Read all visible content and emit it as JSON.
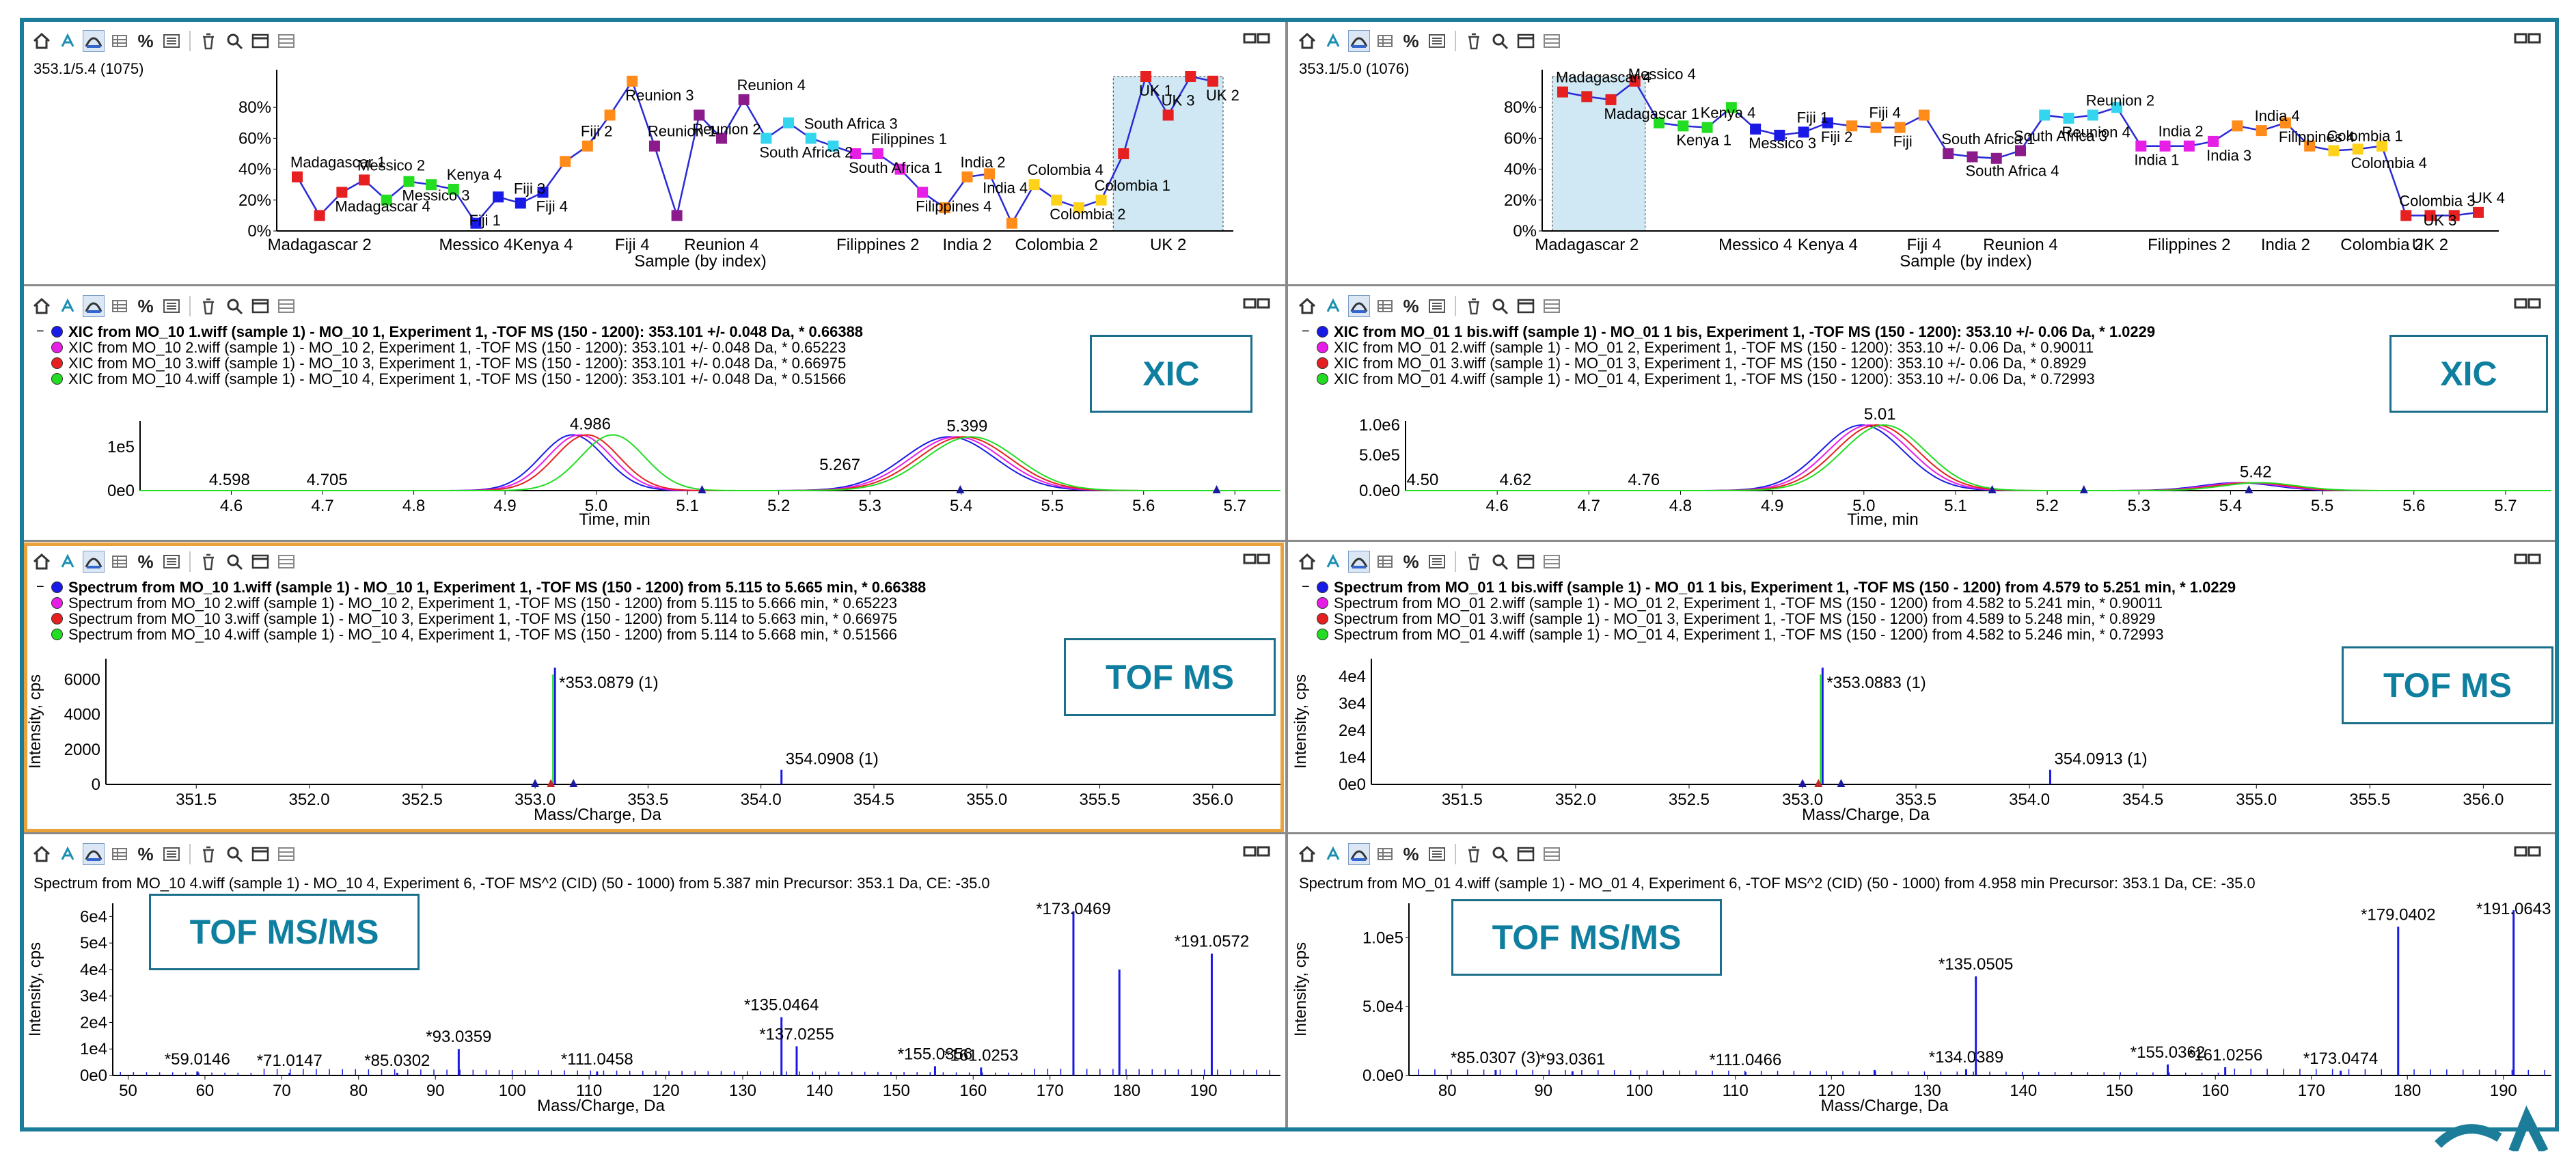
{
  "colors": {
    "frame": "#1b7d9a",
    "accent": "#0f7fa0",
    "selected": "#e9a23b",
    "blue": "#1a1ae6",
    "magenta": "#e61ee6",
    "red": "#e62020",
    "green": "#22dd22",
    "line": "#2a2ad6"
  },
  "toolbar_icons": [
    "home-icon",
    "zoom-tool-icon",
    "peak-icon",
    "table-icon",
    "percent-icon",
    "list-icon",
    "delete-icon",
    "search-icon",
    "window-icon",
    "window-alt-icon"
  ],
  "percent_label": "%",
  "panels": {
    "trend_left": {
      "header": "353.1/5.4 (1075)",
      "chart_data": {
        "type": "line",
        "xlabel": "Sample (by index)",
        "yticks": [
          "0%",
          "20%",
          "40%",
          "60%",
          "80%"
        ],
        "ylim": [
          0,
          100
        ],
        "xticks": [
          "Madagascar 2",
          "Messico 4",
          "Kenya 4",
          "Fiji 4",
          "Reunion 4",
          "Filippines 2",
          "India 2",
          "Colombia 2",
          "UK 2"
        ],
        "values": [
          35,
          10,
          25,
          33,
          20,
          32,
          30,
          27,
          5,
          22,
          18,
          25,
          45,
          55,
          75,
          97,
          55,
          10,
          75,
          60,
          85,
          60,
          70,
          60,
          55,
          50,
          50,
          40,
          25,
          15,
          35,
          37,
          5,
          30,
          20,
          15,
          20,
          50,
          100,
          75,
          100,
          97
        ],
        "colors": [
          "#e62020",
          "#e62020",
          "#e62020",
          "#e62020",
          "#22dd22",
          "#22dd22",
          "#22dd22",
          "#22dd22",
          "#1a1ae6",
          "#1a1ae6",
          "#1a1ae6",
          "#1a1ae6",
          "#ff8c1a",
          "#ff8c1a",
          "#ff8c1a",
          "#ff8c1a",
          "#8b1a8b",
          "#8b1a8b",
          "#8b1a8b",
          "#8b1a8b",
          "#8b1a8b",
          "#33d6ee",
          "#33d6ee",
          "#33d6ee",
          "#33d6ee",
          "#e61ee6",
          "#e61ee6",
          "#e61ee6",
          "#e61ee6",
          "#ff8c1a",
          "#ff8c1a",
          "#ff8c1a",
          "#ff8c1a",
          "#ffd21a",
          "#ffd21a",
          "#ffd21a",
          "#ffd21a",
          "#e62020",
          "#e62020",
          "#e62020",
          "#e62020",
          "#e62020"
        ],
        "annotations": [
          "Madagascar 1",
          "Madagascar 4",
          "Messico 2",
          "Messico 3",
          "Kenya 4",
          "Fiji 1",
          "Fiji 3",
          "Fiji 4",
          "Fiji 2",
          "Reunion 3",
          "Reunion 1",
          "Reunion 2",
          "Reunion 4",
          "South Africa 2",
          "South Africa 3",
          "South Africa 1",
          "Filippines 1",
          "Filippines 4",
          "India 2",
          "India 4",
          "Colombia 4",
          "Colombia 2",
          "Colombia 1",
          "UK 1",
          "UK 3",
          "UK 2"
        ],
        "highlight": "UK 2"
      }
    },
    "trend_right": {
      "header": "353.1/5.0 (1076)",
      "chart_data": {
        "type": "line",
        "xlabel": "Sample (by index)",
        "yticks": [
          "0%",
          "20%",
          "40%",
          "60%",
          "80%"
        ],
        "ylim": [
          0,
          100
        ],
        "xticks": [
          "Madagascar 2",
          "Messico 4",
          "Kenya 4",
          "Fiji 4",
          "Reunion 4",
          "Filippines 2",
          "India 2",
          "Colombia 2",
          "UK 2"
        ],
        "values": [
          90,
          87,
          85,
          97,
          70,
          68,
          67,
          80,
          66,
          62,
          64,
          70,
          68,
          67,
          67,
          75,
          50,
          48,
          47,
          52,
          75,
          73,
          75,
          80,
          55,
          55,
          55,
          58,
          68,
          65,
          70,
          55,
          52,
          53,
          55,
          10,
          10,
          10,
          12
        ],
        "colors": [
          "#e62020",
          "#e62020",
          "#e62020",
          "#e62020",
          "#22dd22",
          "#22dd22",
          "#22dd22",
          "#22dd22",
          "#1a1ae6",
          "#1a1ae6",
          "#1a1ae6",
          "#1a1ae6",
          "#ff8c1a",
          "#ff8c1a",
          "#ff8c1a",
          "#ff8c1a",
          "#8b1a8b",
          "#8b1a8b",
          "#8b1a8b",
          "#8b1a8b",
          "#33d6ee",
          "#33d6ee",
          "#33d6ee",
          "#33d6ee",
          "#e61ee6",
          "#e61ee6",
          "#e61ee6",
          "#e61ee6",
          "#ff8c1a",
          "#ff8c1a",
          "#ff8c1a",
          "#ff8c1a",
          "#ffd21a",
          "#ffd21a",
          "#ffd21a",
          "#e62020",
          "#e62020",
          "#e62020",
          "#e62020"
        ],
        "annotations": [
          "Madagascar 4",
          "Madagascar 1",
          "Messico 4",
          "Kenya 1",
          "Kenya 4",
          "Messico 3",
          "Fiji 1",
          "Fiji 2",
          "Fiji 4",
          "Fiji",
          "South Africa 1",
          "South Africa 4",
          "South Africa 3",
          "Reunion 4",
          "Reunion 2",
          "India 1",
          "India 2",
          "India 3",
          "India 4",
          "Filippines 4",
          "Colombia 1",
          "Colombia 4",
          "Colombia 3",
          "UK 3",
          "UK 4"
        ],
        "highlight": "Madagascar 2"
      }
    },
    "xic_left": {
      "tag": "XIC",
      "legend": [
        "XIC from MO_10 1.wiff (sample 1) - MO_10 1, Experiment 1, -TOF MS (150 - 1200): 353.101 +/- 0.048 Da,  * 0.66388",
        "XIC from MO_10 2.wiff (sample 1) - MO_10 2, Experiment 1, -TOF MS (150 - 1200): 353.101 +/- 0.048 Da,  * 0.65223",
        "XIC from MO_10 3.wiff (sample 1) - MO_10 3, Experiment 1, -TOF MS (150 - 1200): 353.101 +/- 0.048 Da,  * 0.66975",
        "XIC from MO_10 4.wiff (sample 1) - MO_10 4, Experiment 1, -TOF MS (150 - 1200): 353.101 +/- 0.048 Da,  * 0.51566"
      ],
      "chart_data": {
        "type": "line",
        "xlabel": "Time, min",
        "xlim": [
          4.5,
          5.75
        ],
        "xticks": [
          "4.6",
          "4.7",
          "4.8",
          "4.9",
          "5.0",
          "5.1",
          "5.2",
          "5.3",
          "5.4",
          "5.5",
          "5.6",
          "5.7"
        ],
        "yticks": [
          "0e0",
          "1e5"
        ],
        "peaks": [
          {
            "rt": 4.986,
            "label": "4.986"
          },
          {
            "rt": 5.399,
            "label": "5.399"
          }
        ],
        "labels": [
          "4.598",
          "4.705",
          "5.267"
        ]
      }
    },
    "xic_right": {
      "tag": "XIC",
      "legend": [
        "XIC from MO_01 1 bis.wiff (sample 1) - MO_01 1 bis, Experiment 1, -TOF MS (150 - 1200): 353.10 +/- 0.06 Da,  * 1.0229",
        "XIC from MO_01 2.wiff (sample 1) - MO_01 2, Experiment 1, -TOF MS (150 - 1200): 353.10 +/- 0.06 Da,  * 0.90011",
        "XIC from MO_01 3.wiff (sample 1) - MO_01 3, Experiment 1, -TOF MS (150 - 1200): 353.10 +/- 0.06 Da,  * 0.8929",
        "XIC from MO_01 4.wiff (sample 1) - MO_01 4, Experiment 1, -TOF MS (150 - 1200): 353.10 +/- 0.06 Da,  * 0.72993"
      ],
      "chart_data": {
        "type": "line",
        "xlabel": "Time, min",
        "xlim": [
          4.5,
          5.75
        ],
        "xticks": [
          "4.6",
          "4.7",
          "4.8",
          "4.9",
          "5.0",
          "5.1",
          "5.2",
          "5.3",
          "5.4",
          "5.5",
          "5.6",
          "5.7"
        ],
        "yticks": [
          "0.0e0",
          "5.0e5",
          "1.0e6"
        ],
        "peaks": [
          {
            "rt": 5.01,
            "label": "5.01"
          },
          {
            "rt": 5.42,
            "label": "5.42"
          }
        ],
        "labels": [
          "4.50",
          "4.62",
          "4.76"
        ]
      }
    },
    "tof_left": {
      "tag": "TOF MS",
      "legend": [
        "Spectrum from MO_10 1.wiff (sample 1) - MO_10 1, Experiment 1, -TOF MS (150 - 1200) from 5.115 to 5.665 min,  * 0.66388",
        "Spectrum from MO_10 2.wiff (sample 1) - MO_10 2, Experiment 1, -TOF MS (150 - 1200) from 5.115 to 5.666 min,  * 0.65223",
        "Spectrum from MO_10 3.wiff (sample 1) - MO_10 3, Experiment 1, -TOF MS (150 - 1200) from 5.114 to 5.663 min,  * 0.66975",
        "Spectrum from MO_10 4.wiff (sample 1) - MO_10 4, Experiment 1, -TOF MS (150 - 1200) from 5.114 to 5.668 min,  * 0.51566"
      ],
      "chart_data": {
        "type": "bar",
        "xlabel": "Mass/Charge, Da",
        "ylabel": "Intensity, cps",
        "xticks": [
          "351.5",
          "352.0",
          "352.5",
          "353.0",
          "353.5",
          "354.0",
          "354.5",
          "355.0",
          "355.5",
          "356.0"
        ],
        "yticks": [
          "0",
          "2000",
          "4000",
          "6000"
        ],
        "peaks": [
          {
            "mz": 353.0879,
            "label": "*353.0879 (1)"
          },
          {
            "mz": 354.0908,
            "label": "354.0908 (1)"
          }
        ]
      }
    },
    "tof_right": {
      "tag": "TOF MS",
      "legend": [
        "Spectrum from MO_01 1 bis.wiff (sample 1) - MO_01 1 bis, Experiment 1, -TOF MS (150 - 1200) from 4.579 to 5.251 min,  * 1.0229",
        "Spectrum from MO_01 2.wiff (sample 1) - MO_01 2, Experiment 1, -TOF MS (150 - 1200) from 4.582 to 5.241 min,  * 0.90011",
        "Spectrum from MO_01 3.wiff (sample 1) - MO_01 3, Experiment 1, -TOF MS (150 - 1200) from 4.589 to 5.248 min,  * 0.8929",
        "Spectrum from MO_01 4.wiff (sample 1) - MO_01 4, Experiment 1, -TOF MS (150 - 1200) from 4.582 to 5.246 min,  * 0.72993"
      ],
      "chart_data": {
        "type": "bar",
        "xlabel": "Mass/Charge, Da",
        "ylabel": "Intensity, cps",
        "xticks": [
          "351.5",
          "352.0",
          "352.5",
          "353.0",
          "353.5",
          "354.0",
          "354.5",
          "355.0",
          "355.5",
          "356.0"
        ],
        "yticks": [
          "0e0",
          "1e4",
          "2e4",
          "3e4",
          "4e4"
        ],
        "peaks": [
          {
            "mz": 353.0883,
            "label": "*353.0883 (1)"
          },
          {
            "mz": 354.0913,
            "label": "354.0913 (1)"
          }
        ]
      }
    },
    "msms_left": {
      "tag": "TOF MS/MS",
      "header": "Spectrum from MO_10 4.wiff (sample 1) - MO_10 4, Experiment 6, -TOF MS^2 (CID) (50 - 1000) from 5.387 min Precursor: 353.1 Da, CE: -35.0",
      "chart_data": {
        "type": "bar",
        "xlabel": "Mass/Charge, Da",
        "ylabel": "Intensity, cps",
        "xticks": [
          "50",
          "60",
          "70",
          "80",
          "90",
          "100",
          "110",
          "120",
          "130",
          "140",
          "150",
          "160",
          "170",
          "180",
          "190"
        ],
        "yticks": [
          "0e0",
          "1e4",
          "2e4",
          "3e4",
          "4e4",
          "5e4",
          "6e4"
        ],
        "xlim": [
          48,
          200
        ],
        "ylim": [
          0,
          65000
        ],
        "peaks": [
          {
            "mz": 59.0146,
            "i": 1500,
            "label": "*59.0146"
          },
          {
            "mz": 71.0147,
            "i": 1000,
            "label": "*71.0147"
          },
          {
            "mz": 85.0302,
            "i": 1000,
            "label": "*85.0302"
          },
          {
            "mz": 93.0359,
            "i": 10000,
            "label": "*93.0359"
          },
          {
            "mz": 111.0458,
            "i": 1500,
            "label": "*111.0458"
          },
          {
            "mz": 135.0464,
            "i": 22000,
            "label": "*135.0464"
          },
          {
            "mz": 137.0255,
            "i": 11000,
            "label": "*137.0255"
          },
          {
            "mz": 155.0356,
            "i": 3500,
            "label": "*155.0356"
          },
          {
            "mz": 161.0253,
            "i": 3000,
            "label": "*161.0253"
          },
          {
            "mz": 173.0469,
            "i": 62000,
            "label": "*173.0469"
          },
          {
            "mz": 179.03,
            "i": 40000,
            "label": ""
          },
          {
            "mz": 191.0572,
            "i": 46000,
            "label": "*191.0572"
          }
        ]
      }
    },
    "msms_right": {
      "tag": "TOF MS/MS",
      "header": "Spectrum from MO_01 4.wiff (sample 1) - MO_01 4, Experiment 6, -TOF MS^2 (CID) (50 - 1000) from 4.958 min Precursor: 353.1 Da, CE: -35.0",
      "chart_data": {
        "type": "bar",
        "xlabel": "Mass/Charge, Da",
        "ylabel": "Intensity, cps",
        "xticks": [
          "80",
          "90",
          "100",
          "110",
          "120",
          "130",
          "140",
          "150",
          "160",
          "170",
          "180",
          "190"
        ],
        "yticks": [
          "0.0e0",
          "5.0e4",
          "1.0e5"
        ],
        "xlim": [
          76,
          195
        ],
        "ylim": [
          0,
          125000
        ],
        "peaks": [
          {
            "mz": 85.0307,
            "i": 4000,
            "label": "*85.0307 (3)"
          },
          {
            "mz": 93.0361,
            "i": 3000,
            "label": "*93.0361"
          },
          {
            "mz": 111.0466,
            "i": 2500,
            "label": "*111.0466"
          },
          {
            "mz": 124.5,
            "i": 4000,
            "label": ""
          },
          {
            "mz": 134.0389,
            "i": 4500,
            "label": "*134.0389"
          },
          {
            "mz": 135.0505,
            "i": 72000,
            "label": "*135.0505"
          },
          {
            "mz": 155.0362,
            "i": 8000,
            "label": "*155.0362"
          },
          {
            "mz": 161.0256,
            "i": 6000,
            "label": "*161.0256"
          },
          {
            "mz": 173.0474,
            "i": 3500,
            "label": "*173.0474"
          },
          {
            "mz": 179.0402,
            "i": 108000,
            "label": "*179.0402"
          },
          {
            "mz": 191.0643,
            "i": 120000,
            "label": "*191.0643"
          }
        ]
      }
    }
  }
}
